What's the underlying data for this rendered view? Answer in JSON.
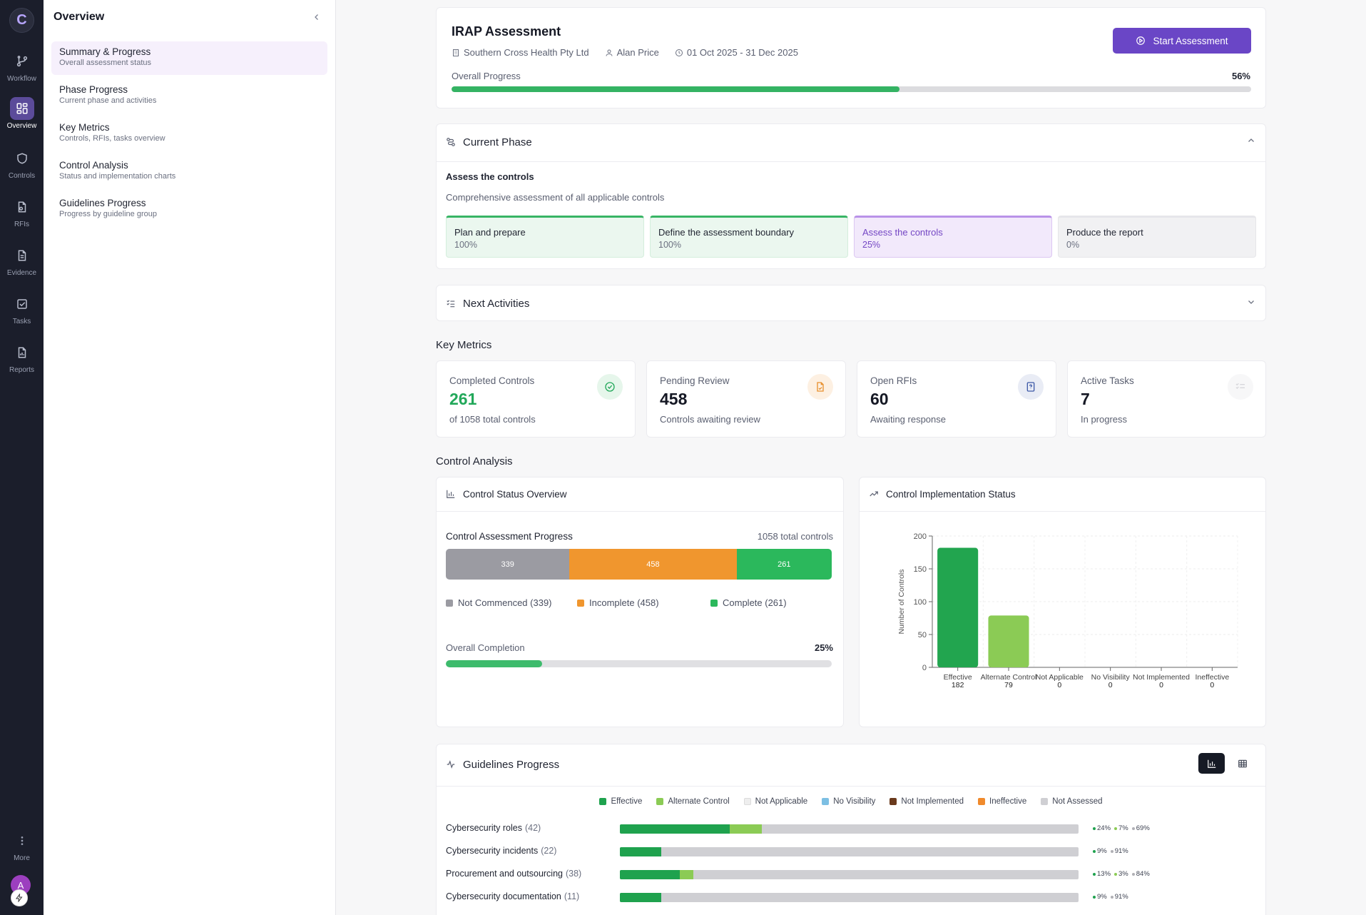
{
  "rail": {
    "logo": "C",
    "items": [
      {
        "label": "Workflow",
        "icon": "workflow-icon"
      },
      {
        "label": "Overview",
        "icon": "dashboard-icon"
      },
      {
        "label": "Controls",
        "icon": "shield-icon"
      },
      {
        "label": "RFIs",
        "icon": "document-question-icon"
      },
      {
        "label": "Evidence",
        "icon": "file-text-icon"
      },
      {
        "label": "Tasks",
        "icon": "checkbox-icon"
      },
      {
        "label": "Reports",
        "icon": "report-icon"
      }
    ],
    "more_label": "More",
    "avatar_initial": "A"
  },
  "sidebar": {
    "title": "Overview",
    "items": [
      {
        "title": "Summary & Progress",
        "subtitle": "Overall assessment status"
      },
      {
        "title": "Phase Progress",
        "subtitle": "Current phase and activities"
      },
      {
        "title": "Key Metrics",
        "subtitle": "Controls, RFIs, tasks overview"
      },
      {
        "title": "Control Analysis",
        "subtitle": "Status and implementation charts"
      },
      {
        "title": "Guidelines Progress",
        "subtitle": "Progress by guideline group"
      }
    ]
  },
  "header": {
    "title": "IRAP Assessment",
    "organization": "Southern Cross Health Pty Ltd",
    "assessor": "Alan Price",
    "date_range": "01 Oct 2025 - 31 Dec 2025",
    "start_button": "Start Assessment",
    "progress_label": "Overall Progress",
    "progress_value": "56%",
    "progress_fraction": 0.56
  },
  "current_phase": {
    "title": "Current Phase",
    "name": "Assess the controls",
    "description": "Comprehensive assessment of all applicable controls",
    "phases": [
      {
        "name": "Plan and prepare",
        "percent": "100%",
        "status": "done"
      },
      {
        "name": "Define the assessment boundary",
        "percent": "100%",
        "status": "done"
      },
      {
        "name": "Assess the controls",
        "percent": "25%",
        "status": "current"
      },
      {
        "name": "Produce the report",
        "percent": "0%",
        "status": "todo"
      }
    ]
  },
  "next_activities": {
    "title": "Next Activities"
  },
  "key_metrics": {
    "title": "Key Metrics",
    "cards": [
      {
        "label": "Completed Controls",
        "value": "261",
        "sub": "of 1058 total controls",
        "color": "#22a85a",
        "icon": "check-circle-icon"
      },
      {
        "label": "Pending Review",
        "value": "458",
        "sub": "Controls awaiting review",
        "color": "#151824",
        "icon": "file-edit-icon"
      },
      {
        "label": "Open RFIs",
        "value": "60",
        "sub": "Awaiting response",
        "color": "#151824",
        "icon": "file-question-icon"
      },
      {
        "label": "Active Tasks",
        "value": "7",
        "sub": "In progress",
        "color": "#151824",
        "icon": "list-check-icon"
      }
    ]
  },
  "control_analysis": {
    "title": "Control Analysis",
    "status_overview": {
      "title": "Control Status Overview",
      "progress_title": "Control Assessment Progress",
      "total_label": "1058 total controls",
      "segments": [
        {
          "label": "Not Commenced",
          "value": 339,
          "color": "#9b9ba2",
          "legend": "Not Commenced (339)"
        },
        {
          "label": "Incomplete",
          "value": 458,
          "color": "#f0962e",
          "legend": "Incomplete (458)"
        },
        {
          "label": "Complete",
          "value": 261,
          "color": "#2bb85c",
          "legend": "Complete (261)"
        }
      ],
      "completion_label": "Overall Completion",
      "completion_value": "25%",
      "completion_fraction": 0.25
    },
    "implementation": {
      "title": "Control Implementation Status"
    }
  },
  "chart_data": {
    "type": "bar",
    "title": "Control Implementation Status",
    "categories": [
      "Effective",
      "Alternate Control",
      "Not Applicable",
      "No Visibility",
      "Not Implemented",
      "Ineffective"
    ],
    "values": [
      182,
      79,
      0,
      0,
      0,
      0
    ],
    "colors": [
      "#22a54f",
      "#8bcb55",
      "#22a54f",
      "#22a54f",
      "#22a54f",
      "#22a54f"
    ],
    "xlabel": "",
    "ylabel": "Number of Controls",
    "ylim": [
      0,
      200
    ],
    "yticks": [
      0,
      50,
      100,
      150,
      200
    ],
    "grid": true
  },
  "guidelines": {
    "title": "Guidelines Progress",
    "legend": [
      {
        "label": "Effective",
        "color": "#1fa24e"
      },
      {
        "label": "Alternate Control",
        "color": "#8bcb55"
      },
      {
        "label": "Not Applicable",
        "color": "#eeeeee"
      },
      {
        "label": "No Visibility",
        "color": "#7cbfe3"
      },
      {
        "label": "Not Implemented",
        "color": "#6a3a1c"
      },
      {
        "label": "Ineffective",
        "color": "#f08a2c"
      },
      {
        "label": "Not Assessed",
        "color": "#cfcfd3"
      }
    ],
    "rows": [
      {
        "name": "Cybersecurity roles",
        "count": "(42)",
        "effective": 0.24,
        "alternate": 0.07,
        "labels": [
          {
            "text": "24%",
            "color": "#1fa24e"
          },
          {
            "text": "7%",
            "color": "#8bcb55"
          },
          {
            "text": "69%",
            "color": "#b0b0b5"
          }
        ]
      },
      {
        "name": "Cybersecurity incidents",
        "count": "(22)",
        "effective": 0.09,
        "alternate": 0,
        "labels": [
          {
            "text": "9%",
            "color": "#1fa24e"
          },
          {
            "text": "91%",
            "color": "#b0b0b5"
          }
        ]
      },
      {
        "name": "Procurement and outsourcing",
        "count": "(38)",
        "effective": 0.13,
        "alternate": 0.03,
        "labels": [
          {
            "text": "13%",
            "color": "#1fa24e"
          },
          {
            "text": "3%",
            "color": "#8bcb55"
          },
          {
            "text": "84%",
            "color": "#b0b0b5"
          }
        ]
      },
      {
        "name": "Cybersecurity documentation",
        "count": "(11)",
        "effective": 0.09,
        "alternate": 0,
        "labels": [
          {
            "text": "9%",
            "color": "#1fa24e"
          },
          {
            "text": "91%",
            "color": "#b0b0b5"
          }
        ]
      }
    ]
  }
}
